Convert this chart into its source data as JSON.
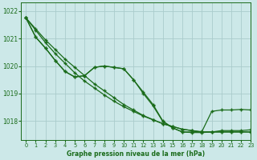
{
  "title": "Graphe pression niveau de la mer (hPa)",
  "bg_color": "#cce8e8",
  "grid_color": "#aacccc",
  "line_color": "#1a6b1a",
  "xlim": [
    -0.5,
    23
  ],
  "ylim": [
    1017.3,
    1022.3
  ],
  "yticks": [
    1018,
    1019,
    1020,
    1021,
    1022
  ],
  "ytick_labels": [
    "1018",
    "1019",
    "1020",
    "1021",
    "1022"
  ],
  "xticks": [
    0,
    1,
    2,
    3,
    4,
    5,
    6,
    7,
    8,
    9,
    10,
    11,
    12,
    13,
    14,
    15,
    16,
    17,
    18,
    19,
    20,
    21,
    22,
    23
  ],
  "line_straight1": [
    1021.75,
    1021.35,
    1020.95,
    1020.6,
    1020.25,
    1019.95,
    1019.65,
    1019.35,
    1019.1,
    1018.85,
    1018.6,
    1018.4,
    1018.2,
    1018.05,
    1017.9,
    1017.8,
    1017.7,
    1017.65,
    1017.6,
    1017.6,
    1017.6,
    1017.6,
    1017.6,
    1017.6
  ],
  "line_straight2": [
    1021.75,
    1021.3,
    1020.85,
    1020.45,
    1020.1,
    1019.75,
    1019.45,
    1019.2,
    1018.95,
    1018.72,
    1018.52,
    1018.35,
    1018.18,
    1018.04,
    1017.9,
    1017.8,
    1017.7,
    1017.65,
    1017.6,
    1017.6,
    1017.6,
    1017.6,
    1017.6,
    1017.6
  ],
  "line_wavy1": [
    1021.75,
    1021.05,
    1020.65,
    1020.2,
    1019.8,
    1019.6,
    1019.65,
    1019.95,
    1020.0,
    1019.95,
    1019.9,
    1019.5,
    1019.0,
    1018.55,
    1017.98,
    1017.75,
    1017.6,
    1017.6,
    1017.62,
    1018.35,
    1018.4,
    1018.4,
    1018.42,
    1018.4
  ],
  "line_wavy2": [
    1021.75,
    1021.05,
    1020.65,
    1020.2,
    1019.8,
    1019.6,
    1019.65,
    1019.95,
    1020.0,
    1019.95,
    1019.9,
    1019.5,
    1019.05,
    1018.6,
    1018.0,
    1017.75,
    1017.6,
    1017.58,
    1017.58,
    1017.6,
    1017.65,
    1017.65,
    1017.65,
    1017.68
  ]
}
